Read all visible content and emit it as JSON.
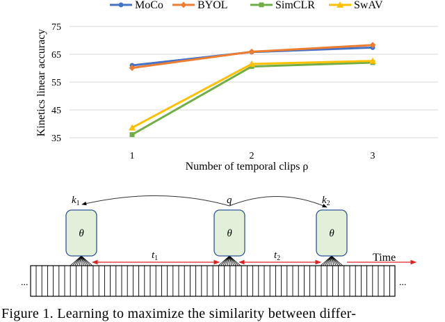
{
  "chart_data": {
    "type": "line",
    "xlabel": "Number of temporal clips ρ",
    "ylabel": "Kinetics linear accuracy",
    "categories": [
      "1",
      "2",
      "3"
    ],
    "x": [
      1,
      2,
      3
    ],
    "ylim": [
      35,
      75
    ],
    "yticks": [
      "35",
      "45",
      "55",
      "65",
      "75"
    ],
    "grid": true,
    "legend_position": "top",
    "series": [
      {
        "name": "MoCo",
        "color": "#4472C4",
        "marker": "circle",
        "values": [
          61.0,
          65.8,
          67.4
        ]
      },
      {
        "name": "BYOL",
        "color": "#ED7D31",
        "marker": "diamond",
        "values": [
          60.1,
          65.9,
          68.3
        ]
      },
      {
        "name": "SimCLR",
        "color": "#70AD47",
        "marker": "square",
        "values": [
          36.1,
          60.6,
          62.0
        ]
      },
      {
        "name": "SwAV",
        "color": "#FFC000",
        "marker": "triangle",
        "values": [
          38.6,
          61.5,
          62.6
        ]
      }
    ]
  },
  "diagram": {
    "encoders": [
      {
        "key_label": "k",
        "key_sub": "1",
        "param": "θ"
      },
      {
        "key_label": "q",
        "key_sub": "",
        "param": "θ"
      },
      {
        "key_label": "k",
        "key_sub": "2",
        "param": "θ"
      }
    ],
    "interval_1": "t",
    "interval_1_sub": "1",
    "interval_2": "t",
    "interval_2_sub": "2",
    "time_label": "Time",
    "ellipsis_left": "...",
    "ellipsis_right": "...",
    "encoder_fill": "#E2F0D9",
    "encoder_stroke": "#2F5597",
    "arrow_color": "#E02020"
  },
  "caption": "Figure 1.   Learning to maximize the similarity between differ-"
}
